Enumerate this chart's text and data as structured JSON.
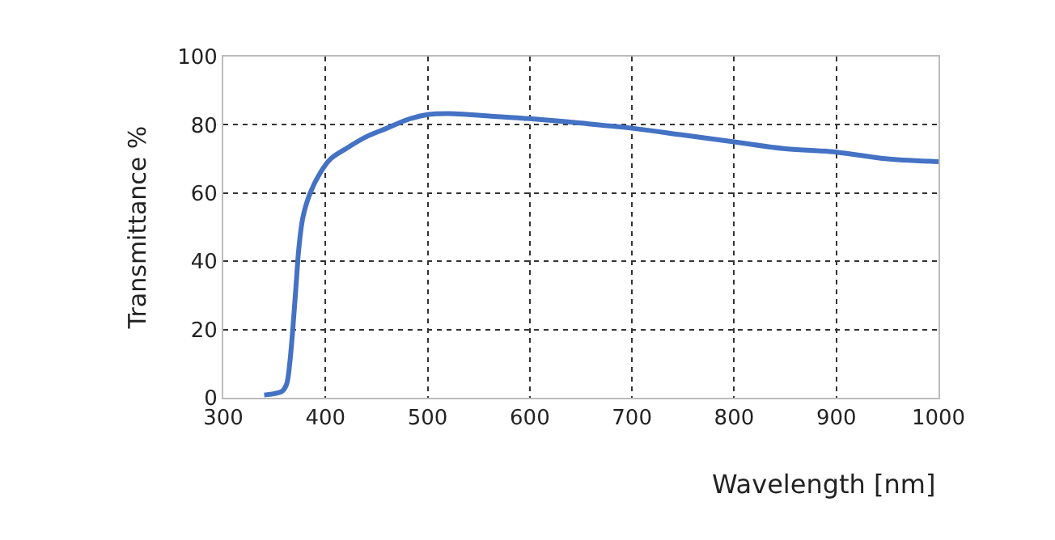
{
  "chart_data": {
    "type": "line",
    "xlabel": "Wavelength [nm]",
    "ylabel": "Transmittance %",
    "xlim": [
      300,
      1000
    ],
    "xticks": [
      300,
      400,
      500,
      600,
      700,
      800,
      900,
      1000
    ],
    "ylim": [
      0,
      100
    ],
    "yticks": [
      0,
      20,
      40,
      60,
      80,
      100
    ],
    "grid": true,
    "line_style": "solid",
    "series": [
      {
        "color": "#4472c4",
        "x": [
          340,
          350,
          358,
          362,
          365,
          368,
          371,
          374,
          378,
          385,
          395,
          405,
          420,
          440,
          460,
          480,
          500,
          520,
          540,
          560,
          600,
          650,
          700,
          750,
          800,
          850,
          900,
          950,
          1000
        ],
        "values": [
          0.8,
          1.2,
          2,
          4,
          10,
          20,
          32,
          44,
          53,
          60,
          66,
          70,
          73,
          76.5,
          79,
          81.5,
          83,
          83.3,
          83,
          82.6,
          81.8,
          80.5,
          79,
          77,
          75,
          73,
          72,
          70,
          69.2
        ]
      }
    ]
  }
}
